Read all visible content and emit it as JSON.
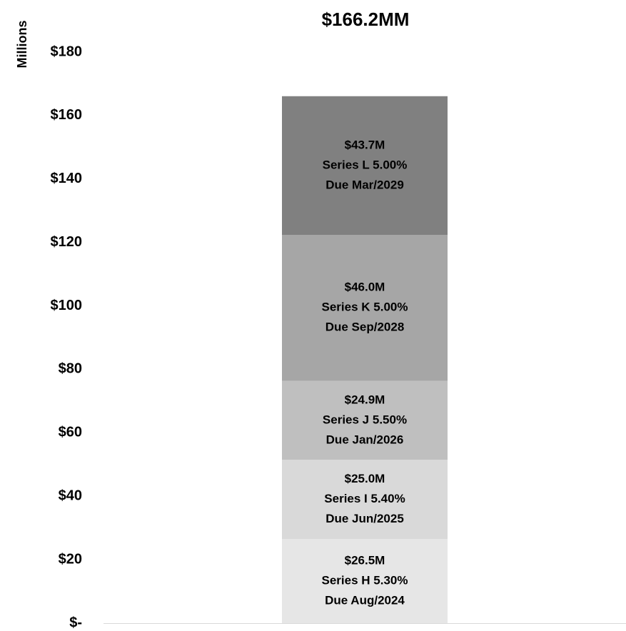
{
  "chart_data": {
    "type": "stacked_bar",
    "title": "$166.2MM",
    "y_axis_label": "Millions",
    "categories": [
      null
    ],
    "series": [
      {
        "name": "Series H 5.30%",
        "maturity": "Due Aug/2024",
        "color": "#e6e6e6",
        "values": [
          26.5
        ],
        "value_labels": [
          "$26.5M"
        ]
      },
      {
        "name": "Series I 5.40%",
        "maturity": "Due Jun/2025",
        "color": "#d9d9d9",
        "values": [
          25.0
        ],
        "value_labels": [
          "$25.0M"
        ]
      },
      {
        "name": "Series J 5.50%",
        "maturity": "Due Jan/2026",
        "color": "#bfbfbf",
        "values": [
          24.9
        ],
        "value_labels": [
          "$24.9M"
        ]
      },
      {
        "name": "Series K 5.00%",
        "maturity": "Due Sep/2028",
        "color": "#a6a6a6",
        "values": [
          46.0
        ],
        "value_labels": [
          "$46.0M"
        ]
      },
      {
        "name": "Series L 5.00%",
        "maturity": "Due Mar/2029",
        "color": "#808080",
        "values": [
          43.7
        ],
        "value_labels": [
          "$43.7M"
        ]
      }
    ],
    "ylim": [
      0,
      180
    ],
    "yticks": [
      {
        "value": 0,
        "label": "$-"
      },
      {
        "value": 20,
        "label": "$20"
      },
      {
        "value": 40,
        "label": "$40"
      },
      {
        "value": 60,
        "label": "$60"
      },
      {
        "value": 80,
        "label": "$80"
      },
      {
        "value": 100,
        "label": "$100"
      },
      {
        "value": 120,
        "label": "$120"
      },
      {
        "value": 140,
        "label": "$140"
      },
      {
        "value": 160,
        "label": "$160"
      },
      {
        "value": 180,
        "label": "$180"
      }
    ],
    "grid": false
  }
}
